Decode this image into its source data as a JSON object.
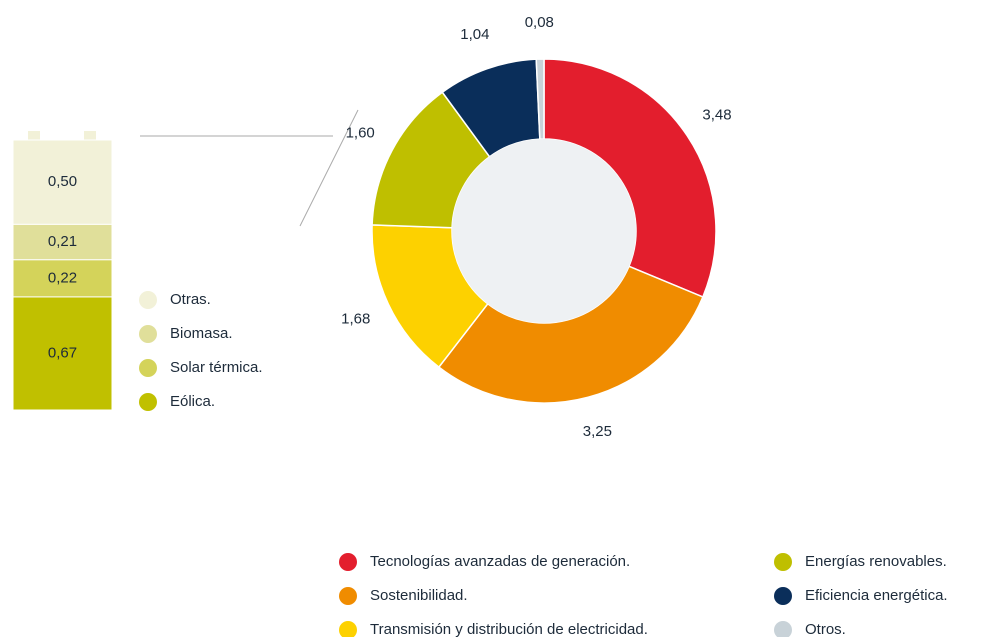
{
  "chart_data": [
    {
      "type": "pie",
      "categories": [
        "Tecnologías avanzadas de generación.",
        "Sostenibilidad.",
        "Transmisión y distribución de electricidad.",
        "Energías renovables.",
        "Eficiencia energética.",
        "Otros."
      ],
      "values": [
        3.48,
        3.25,
        1.68,
        1.6,
        1.04,
        0.08
      ],
      "value_labels": [
        "3,48",
        "3,25",
        "1,68",
        "1,60",
        "1,04",
        "0,08"
      ],
      "colors": [
        "#e31e2d",
        "#f08c00",
        "#fdd100",
        "#bfbf00",
        "#0a2e5a",
        "#c8d2d8"
      ]
    },
    {
      "type": "stacked_bar",
      "categories": [
        "Otras.",
        "Biomasa.",
        "Solar térmica.",
        "Eólica."
      ],
      "values": [
        0.5,
        0.21,
        0.22,
        0.67
      ],
      "value_labels": [
        "0,50",
        "0,21",
        "0,22",
        "0,67"
      ],
      "colors": [
        "#f2f1d8",
        "#e0df9a",
        "#d4d35a",
        "#c0c000"
      ]
    }
  ]
}
